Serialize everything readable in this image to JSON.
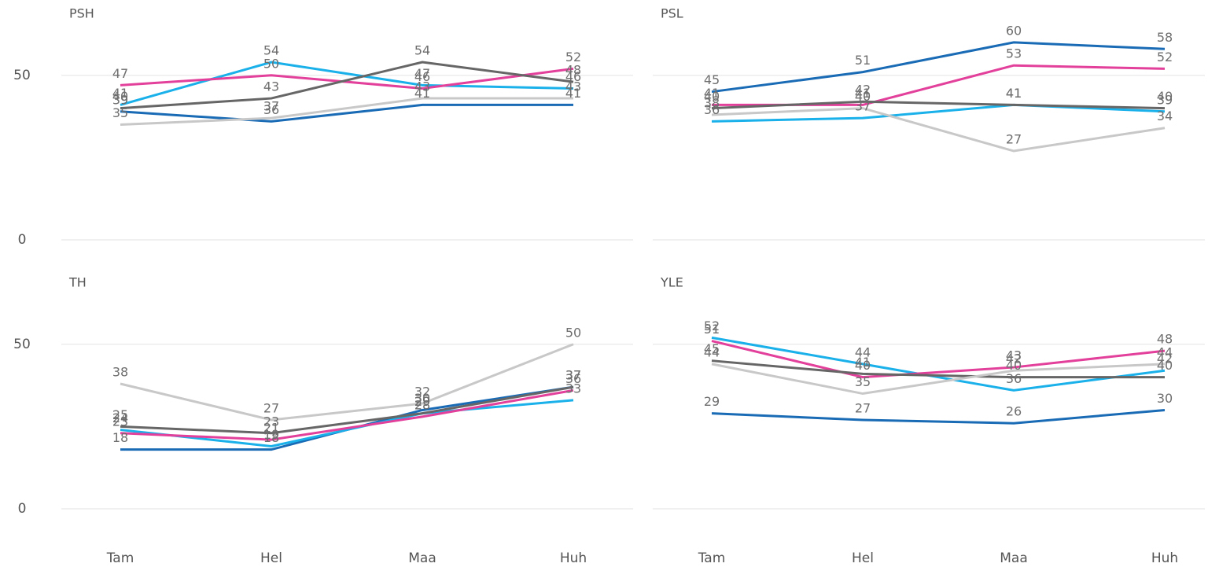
{
  "categories": [
    "Tam",
    "Hel",
    "Maa",
    "Huh"
  ],
  "ylim": [
    0,
    65
  ],
  "yticks": [
    0,
    50
  ],
  "chart_data": [
    {
      "type": "line",
      "title": "PSH",
      "series": [
        {
          "color": "#1a6bb5",
          "values": [
            39,
            36,
            41,
            41
          ]
        },
        {
          "color": "#1ab0ea",
          "values": [
            41,
            54,
            47,
            46
          ]
        },
        {
          "color": "#e2409b",
          "values": [
            47,
            50,
            46,
            52
          ]
        },
        {
          "color": "#666666",
          "values": [
            40,
            43,
            54,
            48
          ]
        },
        {
          "color": "#c8c8c8",
          "values": [
            35,
            37,
            43,
            43
          ]
        }
      ]
    },
    {
      "type": "line",
      "title": "PSL",
      "series": [
        {
          "color": "#1a6bb5",
          "values": [
            45,
            51,
            60,
            58
          ]
        },
        {
          "color": "#1ab0ea",
          "values": [
            36,
            37,
            41,
            39
          ]
        },
        {
          "color": "#e2409b",
          "values": [
            41,
            41,
            53,
            52
          ]
        },
        {
          "color": "#666666",
          "values": [
            40,
            42,
            41,
            40
          ]
        },
        {
          "color": "#c8c8c8",
          "values": [
            38,
            40,
            27,
            34
          ]
        }
      ]
    },
    {
      "type": "line",
      "title": "TH",
      "series": [
        {
          "color": "#1a6bb5",
          "values": [
            18,
            18,
            30,
            37
          ]
        },
        {
          "color": "#1ab0ea",
          "values": [
            24,
            19,
            29,
            33
          ]
        },
        {
          "color": "#e2409b",
          "values": [
            23,
            21,
            28,
            36
          ]
        },
        {
          "color": "#666666",
          "values": [
            25,
            23,
            29,
            37
          ]
        },
        {
          "color": "#c8c8c8",
          "values": [
            38,
            27,
            32,
            50
          ]
        }
      ]
    },
    {
      "type": "line",
      "title": "YLE",
      "series": [
        {
          "color": "#1a6bb5",
          "values": [
            29,
            27,
            26,
            30
          ]
        },
        {
          "color": "#1ab0ea",
          "values": [
            52,
            44,
            36,
            42
          ]
        },
        {
          "color": "#e2409b",
          "values": [
            51,
            40,
            43,
            48
          ]
        },
        {
          "color": "#666666",
          "values": [
            45,
            41,
            40,
            40
          ]
        },
        {
          "color": "#c8c8c8",
          "values": [
            44,
            35,
            42,
            44
          ]
        }
      ]
    }
  ]
}
